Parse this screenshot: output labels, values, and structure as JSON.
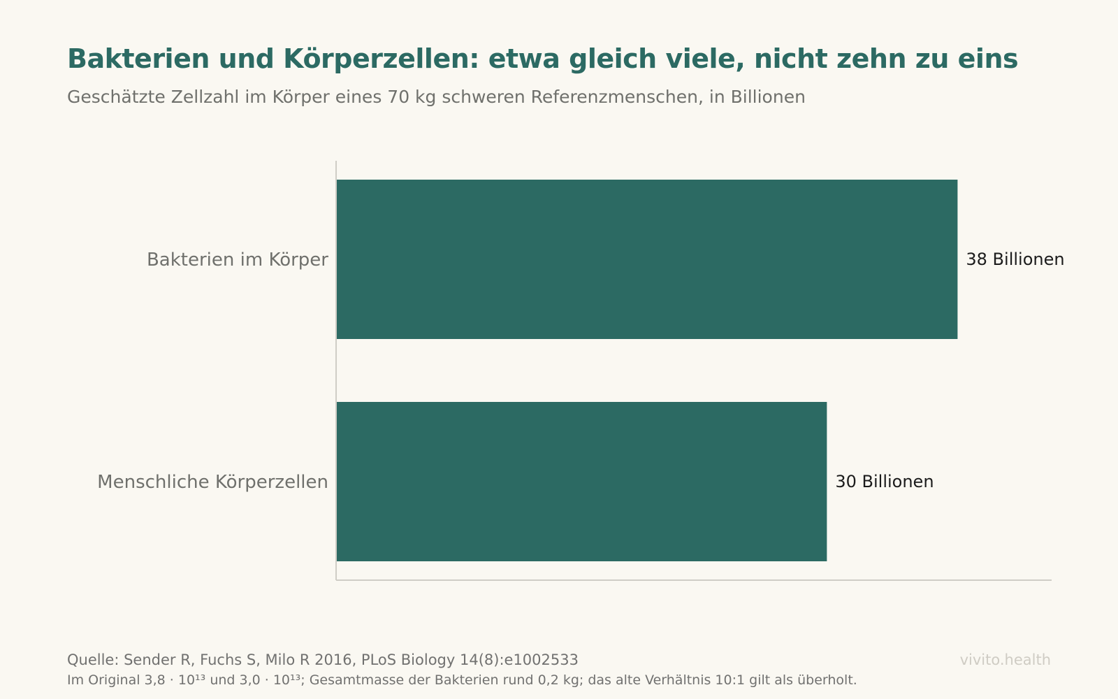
{
  "header": {
    "title": "Bakterien und Körperzellen: etwa gleich viele, nicht zehn zu eins",
    "subtitle": "Geschätzte Zellzahl im Körper eines 70 kg schweren Referenzmenschen, in Billionen"
  },
  "footer": {
    "source": "Quelle: Sender R, Fuchs S, Milo R 2016, PLoS Biology 14(8):e1002533",
    "note": "Im Original 3,8 · 10¹³ und 3,0 · 10¹³; Gesamtmasse der Bakterien rund 0,2 kg; das alte Verhältnis 10:1 gilt als überholt.",
    "brand": "vivito.health"
  },
  "colors": {
    "background": "#faf8f2",
    "bar": "#2c6a63",
    "title": "#2c6a63",
    "axis": "#cfcdc6",
    "category_label": "#6f706c",
    "value_label": "#1c1c1c"
  },
  "chart_data": {
    "type": "bar",
    "orientation": "horizontal",
    "categories": [
      "Bakterien im Körper",
      "Menschliche Körperzellen"
    ],
    "values": [
      38,
      30
    ],
    "value_labels": [
      "38 Billionen",
      "30 Billionen"
    ],
    "xlim": [
      0,
      43.8
    ],
    "grid": false
  }
}
